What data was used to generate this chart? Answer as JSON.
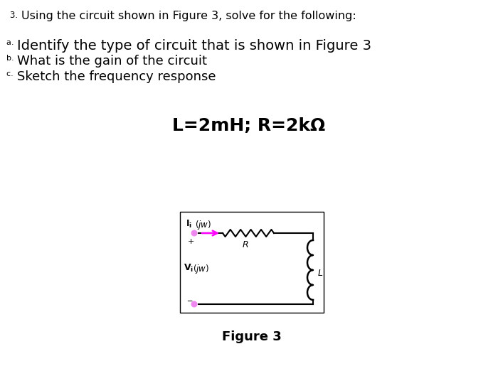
{
  "background_color": "#ffffff",
  "title_prefix": "3. ",
  "title_main": "Using the circuit shown in Figure 3, solve for the following:",
  "items_prefix": [
    "a. ",
    "b. ",
    "c. "
  ],
  "items_main": [
    "Identify the type of circuit that is shown in Figure 3",
    "What is the gain of the circuit",
    "Sketch the frequency response"
  ],
  "param_text": "L=2mH; R=2kΩ",
  "figure_label": "Figure 3",
  "arrow_color": "#ff00ff",
  "terminal_color": "#ee88ee",
  "wire_color": "#000000",
  "box_color": "#000000",
  "fig_width": 7.0,
  "fig_height": 5.15
}
